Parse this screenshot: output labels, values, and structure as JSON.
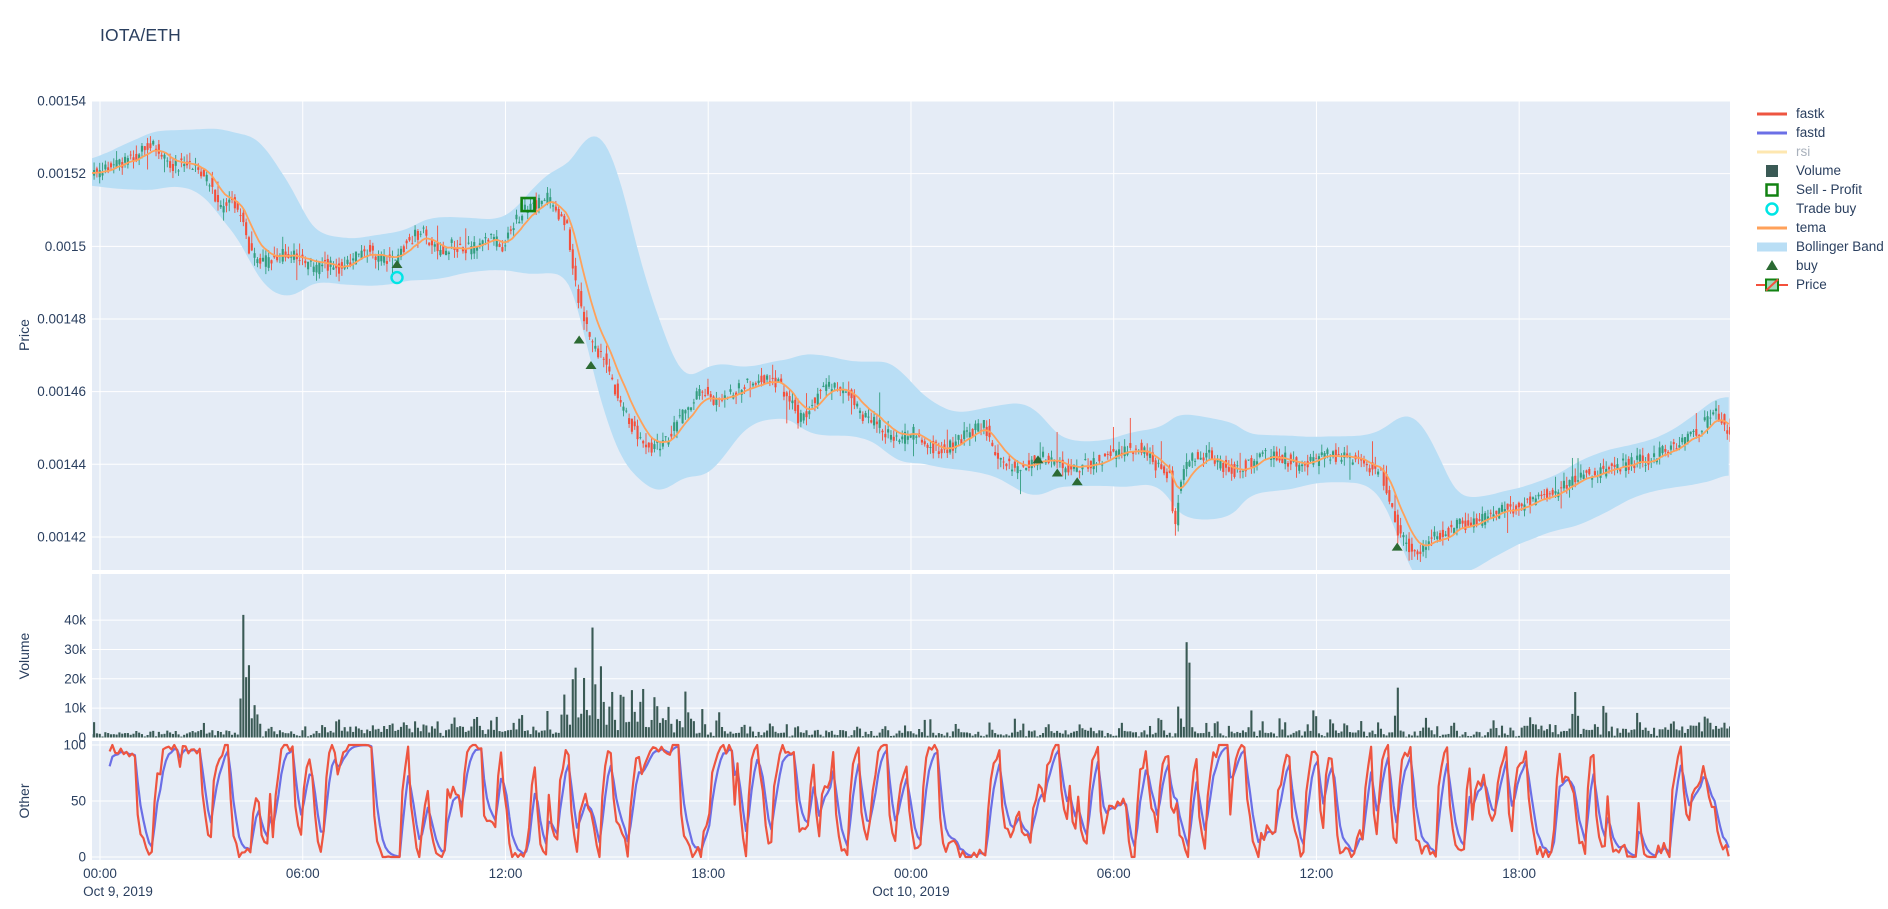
{
  "title": "IOTA/ETH",
  "colors": {
    "page_bg": "#ffffff",
    "plot_bg": "#e5ecf6",
    "grid": "#ffffff",
    "text": "#2a3f5f",
    "muted_text": "#a9b1bc",
    "candle_up": "#339e7f",
    "candle_down": "#f4503c",
    "volume_bar": "#3a5a55",
    "bollinger": "#b9def5",
    "tema": "#ffa15a",
    "fastk": "#ee5540",
    "fastd": "#6b6fe6",
    "rsi": "#fecb52",
    "buy": "#2b6a33",
    "sell_profit": "#128212",
    "trade_buy": "#00e5e5"
  },
  "legend": {
    "items": [
      {
        "label": "fastk",
        "icon": "line",
        "color": "#ee5540",
        "disabled": false
      },
      {
        "label": "fastd",
        "icon": "line",
        "color": "#6b6fe6",
        "disabled": false
      },
      {
        "label": "rsi",
        "icon": "line",
        "color": "#fecb52",
        "disabled": true
      },
      {
        "label": "Volume",
        "icon": "square_fill",
        "color": "#3a5a55",
        "disabled": false
      },
      {
        "label": "Sell - Profit",
        "icon": "square_open",
        "color": "#128212",
        "disabled": false
      },
      {
        "label": "Trade buy",
        "icon": "circle_open",
        "color": "#00e5e5",
        "disabled": false
      },
      {
        "label": "tema",
        "icon": "line",
        "color": "#ffa15a",
        "disabled": false
      },
      {
        "label": "Bollinger Band",
        "icon": "band",
        "color": "#b9def5",
        "disabled": false
      },
      {
        "label": "buy",
        "icon": "triangle",
        "color": "#2b6a33",
        "disabled": false
      },
      {
        "label": "Price",
        "icon": "candle",
        "color": "#339e7f",
        "disabled": false
      }
    ]
  },
  "chart_data": {
    "type": "candlestick-multi-panel",
    "x_range_hours": [
      -0.3,
      48.25
    ],
    "candle_interval_min": 5,
    "seed": 42,
    "x_ticks": [
      {
        "h": 0,
        "label": "00:00",
        "date": "Oct 9, 2019"
      },
      {
        "h": 6,
        "label": "06:00"
      },
      {
        "h": 12,
        "label": "12:00"
      },
      {
        "h": 18,
        "label": "18:00"
      },
      {
        "h": 24,
        "label": "00:00",
        "date": "Oct 10, 2019"
      },
      {
        "h": 30,
        "label": "06:00"
      },
      {
        "h": 36,
        "label": "12:00"
      },
      {
        "h": 42,
        "label": "18:00"
      }
    ],
    "panels": {
      "price": {
        "axis_title": "Price",
        "ylim": [
          0.0014109,
          0.00154
        ],
        "ticks": [
          0.00154,
          0.00152,
          0.0015,
          0.00148,
          0.00146,
          0.00144,
          0.00142
        ],
        "tick_labels": [
          "0.00154",
          "0.00152",
          "0.0015",
          "0.00148",
          "0.00146",
          "0.00144",
          "0.00142"
        ]
      },
      "volume": {
        "axis_title": "Volume",
        "ylim": [
          0,
          55700
        ],
        "ticks": [
          40000,
          30000,
          20000,
          10000,
          0
        ],
        "tick_labels": [
          "40k",
          "30k",
          "20k",
          "10k",
          "0"
        ]
      },
      "other": {
        "axis_title": "Other",
        "ylim": [
          0,
          100
        ],
        "ticks": [
          100,
          50,
          0
        ],
        "tick_labels": [
          "100",
          "50",
          "0"
        ]
      }
    },
    "price_anchors": [
      [
        -0.3,
        0.00152
      ],
      [
        0,
        0.001521
      ],
      [
        0.5,
        0.001522
      ],
      [
        1,
        0.001524
      ],
      [
        1.5,
        0.001528
      ],
      [
        1.8,
        0.001526
      ],
      [
        2.2,
        0.001522
      ],
      [
        2.6,
        0.001523
      ],
      [
        3,
        0.001521
      ],
      [
        3.3,
        0.001517
      ],
      [
        3.6,
        0.00151
      ],
      [
        3.9,
        0.001513
      ],
      [
        4.2,
        0.001508
      ],
      [
        4.5,
        0.001498
      ],
      [
        4.8,
        0.001495
      ],
      [
        5.2,
        0.001497
      ],
      [
        5.6,
        0.001498
      ],
      [
        6,
        0.001496
      ],
      [
        6.4,
        0.001494
      ],
      [
        6.8,
        0.001495
      ],
      [
        7.2,
        0.001494
      ],
      [
        7.6,
        0.001497
      ],
      [
        8,
        0.001499
      ],
      [
        8.4,
        0.001496
      ],
      [
        8.8,
        0.001497
      ],
      [
        9.2,
        0.001502
      ],
      [
        9.6,
        0.001504
      ],
      [
        9.9,
        0.0015
      ],
      [
        10.2,
        0.001498
      ],
      [
        10.5,
        0.001501
      ],
      [
        10.8,
        0.001499
      ],
      [
        11.2,
        0.0015
      ],
      [
        11.6,
        0.001502
      ],
      [
        12,
        0.0015
      ],
      [
        12.2,
        0.001505
      ],
      [
        12.5,
        0.001509
      ],
      [
        12.7,
        0.001511
      ],
      [
        13,
        0.001512
      ],
      [
        13.3,
        0.001513
      ],
      [
        13.6,
        0.001509
      ],
      [
        13.9,
        0.001504
      ],
      [
        14.1,
        0.00149
      ],
      [
        14.4,
        0.001478
      ],
      [
        14.7,
        0.001471
      ],
      [
        15,
        0.001469
      ],
      [
        15.2,
        0.001463
      ],
      [
        15.5,
        0.001455
      ],
      [
        15.8,
        0.00145
      ],
      [
        16.1,
        0.001446
      ],
      [
        16.4,
        0.001444
      ],
      [
        16.8,
        0.001447
      ],
      [
        17.2,
        0.001453
      ],
      [
        17.6,
        0.001458
      ],
      [
        18,
        0.00146
      ],
      [
        18.4,
        0.001456
      ],
      [
        18.8,
        0.00146
      ],
      [
        19.2,
        0.001462
      ],
      [
        19.6,
        0.001464
      ],
      [
        20,
        0.001463
      ],
      [
        20.4,
        0.001459
      ],
      [
        20.7,
        0.001453
      ],
      [
        21,
        0.001455
      ],
      [
        21.4,
        0.001461
      ],
      [
        21.8,
        0.001462
      ],
      [
        22.2,
        0.001459
      ],
      [
        22.6,
        0.001453
      ],
      [
        23,
        0.001452
      ],
      [
        23.4,
        0.001448
      ],
      [
        23.8,
        0.001447
      ],
      [
        24.2,
        0.001449
      ],
      [
        24.6,
        0.001445
      ],
      [
        25,
        0.001444
      ],
      [
        25.4,
        0.001446
      ],
      [
        25.8,
        0.001449
      ],
      [
        26.2,
        0.001451
      ],
      [
        26.5,
        0.001444
      ],
      [
        26.8,
        0.00144
      ],
      [
        27.2,
        0.001439
      ],
      [
        27.6,
        0.001441
      ],
      [
        28,
        0.001442
      ],
      [
        28.4,
        0.00144
      ],
      [
        28.8,
        0.001438
      ],
      [
        29.2,
        0.00144
      ],
      [
        29.6,
        0.001441
      ],
      [
        30,
        0.001443
      ],
      [
        30.4,
        0.001444
      ],
      [
        30.8,
        0.001445
      ],
      [
        31.2,
        0.001441
      ],
      [
        31.5,
        0.001437
      ],
      [
        31.7,
        0.001438
      ],
      [
        31.85,
        0.001421
      ],
      [
        32,
        0.001436
      ],
      [
        32.3,
        0.001441
      ],
      [
        32.8,
        0.001443
      ],
      [
        33.2,
        0.00144
      ],
      [
        33.6,
        0.001438
      ],
      [
        34,
        0.00144
      ],
      [
        34.4,
        0.001442
      ],
      [
        34.8,
        0.001443
      ],
      [
        35.2,
        0.001441
      ],
      [
        35.6,
        0.001439
      ],
      [
        36,
        0.001441
      ],
      [
        36.4,
        0.001443
      ],
      [
        36.8,
        0.001442
      ],
      [
        37.2,
        0.001441
      ],
      [
        37.6,
        0.001439
      ],
      [
        38,
        0.001437
      ],
      [
        38.2,
        0.00143
      ],
      [
        38.5,
        0.00142
      ],
      [
        38.8,
        0.001417
      ],
      [
        39.1,
        0.001416
      ],
      [
        39.4,
        0.001419
      ],
      [
        39.8,
        0.001421
      ],
      [
        40.2,
        0.001423
      ],
      [
        40.6,
        0.001424
      ],
      [
        41,
        0.001425
      ],
      [
        41.4,
        0.001427
      ],
      [
        41.8,
        0.001428
      ],
      [
        42.2,
        0.001429
      ],
      [
        42.6,
        0.001431
      ],
      [
        43,
        0.001432
      ],
      [
        43.4,
        0.001434
      ],
      [
        43.7,
        0.001436
      ],
      [
        44,
        0.001437
      ],
      [
        44.4,
        0.001438
      ],
      [
        44.8,
        0.001439
      ],
      [
        45.2,
        0.00144
      ],
      [
        45.6,
        0.001441
      ],
      [
        46,
        0.001442
      ],
      [
        46.4,
        0.001444
      ],
      [
        46.8,
        0.001446
      ],
      [
        47.2,
        0.001448
      ],
      [
        47.6,
        0.001452
      ],
      [
        47.9,
        0.001454
      ],
      [
        48.25,
        0.001449
      ]
    ],
    "volume_spikes": [
      [
        4.2,
        40500
      ],
      [
        4.35,
        24000
      ],
      [
        4.55,
        9000
      ],
      [
        5,
        3500
      ],
      [
        7,
        5000
      ],
      [
        9,
        3500
      ],
      [
        10.4,
        4500
      ],
      [
        11.1,
        5000
      ],
      [
        12.4,
        6000
      ],
      [
        13.2,
        5000
      ],
      [
        13.7,
        12000
      ],
      [
        14,
        26000
      ],
      [
        14.3,
        18000
      ],
      [
        14.55,
        35500
      ],
      [
        14.8,
        20000
      ],
      [
        15.1,
        13000
      ],
      [
        15.4,
        15500
      ],
      [
        15.7,
        10000
      ],
      [
        16,
        14500
      ],
      [
        16.4,
        13000
      ],
      [
        16.8,
        9000
      ],
      [
        17.3,
        14000
      ],
      [
        17.8,
        8000
      ],
      [
        18.3,
        6500
      ],
      [
        19,
        5000
      ],
      [
        19.8,
        4000
      ],
      [
        20.6,
        3500
      ],
      [
        22.4,
        4000
      ],
      [
        23.2,
        3500
      ],
      [
        25.3,
        3500
      ],
      [
        26.3,
        5000
      ],
      [
        28,
        4500
      ],
      [
        29,
        3500
      ],
      [
        30.2,
        4000
      ],
      [
        31.3,
        5500
      ],
      [
        31.9,
        8000
      ],
      [
        32.15,
        38500
      ],
      [
        33,
        4500
      ],
      [
        34,
        3500
      ],
      [
        35,
        4000
      ],
      [
        35.9,
        8500
      ],
      [
        36.8,
        4500
      ],
      [
        37.8,
        5000
      ],
      [
        38.35,
        15500
      ],
      [
        39.2,
        6000
      ],
      [
        40,
        4000
      ],
      [
        41.2,
        4500
      ],
      [
        42.3,
        4000
      ],
      [
        43.6,
        14500
      ],
      [
        44.5,
        5000
      ],
      [
        45.5,
        4000
      ],
      [
        46.5,
        5000
      ],
      [
        47.5,
        6500
      ]
    ],
    "volume_base": 2200,
    "markers": {
      "trade_buy": [
        [
          8.79,
          0.0014914
        ]
      ],
      "sell_profit": [
        [
          12.67,
          0.0015115
        ]
      ],
      "buy": [
        [
          8.79,
          0.001495
        ],
        [
          14.18,
          0.0014742
        ],
        [
          14.53,
          0.0014672
        ],
        [
          27.76,
          0.0014412
        ],
        [
          28.33,
          0.0014376
        ],
        [
          28.92,
          0.0014352
        ],
        [
          38.39,
          0.0014172
        ]
      ]
    }
  }
}
